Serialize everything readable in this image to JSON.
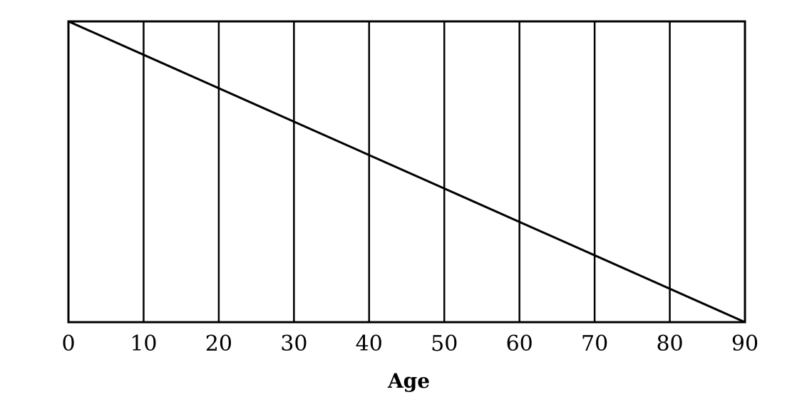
{
  "chart_data": {
    "type": "line",
    "title": "",
    "xlabel": "Age",
    "ylabel": "",
    "xlim": [
      0,
      90
    ],
    "ylim": [
      0,
      1
    ],
    "x_ticks": [
      0,
      10,
      20,
      30,
      40,
      50,
      60,
      70,
      80,
      90
    ],
    "x_tick_labels": [
      "0",
      "10",
      "20",
      "30",
      "40",
      "50",
      "60",
      "70",
      "80",
      "90"
    ],
    "grid": "vertical lines at each x tick",
    "y_axis_labels_shown": false,
    "series": [
      {
        "x": [
          0,
          90
        ],
        "y": [
          1,
          0
        ]
      }
    ],
    "colors": {
      "line": "#000000",
      "frame": "#000000",
      "grid": "#000000",
      "background": "#ffffff"
    }
  }
}
